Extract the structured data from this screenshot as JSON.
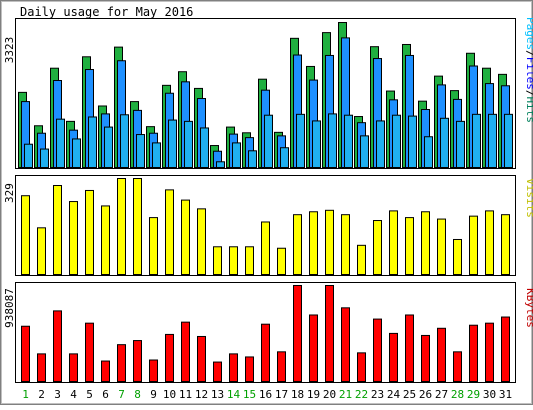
{
  "window": {
    "title": "Daily usage for May 2016"
  },
  "colors": {
    "hits": "#00805C",
    "hits_fill": "#20B040",
    "files": "#0000FF",
    "files_fill": "#1E90FF",
    "pages": "#00C0FF",
    "pages_fill": "#20B0F0",
    "visits": "#C0C000",
    "visits_fill": "#FFFF00",
    "kbytes": "#C00000",
    "kbytes_fill": "#FF0000",
    "weekend_label": "#00A000",
    "weekday_label": "#000000"
  },
  "chart_data": [
    {
      "type": "bar",
      "panel": "hits-files-pages",
      "title": "Daily usage for May 2016",
      "ylabel_parts": [
        "Pages",
        "/",
        "Files",
        "/",
        "Hits"
      ],
      "ymax_label": "3323",
      "ylim": [
        0,
        3323
      ],
      "categories": [
        "1",
        "2",
        "3",
        "4",
        "5",
        "6",
        "7",
        "8",
        "9",
        "10",
        "11",
        "12",
        "13",
        "14",
        "15",
        "16",
        "17",
        "18",
        "19",
        "20",
        "21",
        "22",
        "23",
        "24",
        "25",
        "26",
        "27",
        "28",
        "29",
        "30",
        "31"
      ],
      "weekend_days": [
        "1",
        "7",
        "8",
        "14",
        "15",
        "21",
        "22",
        "28",
        "29"
      ],
      "series": [
        {
          "name": "Hits",
          "values": [
            1710,
            950,
            2260,
            1050,
            2520,
            1400,
            2740,
            1500,
            930,
            1870,
            2180,
            1800,
            500,
            920,
            790,
            2010,
            800,
            2940,
            2300,
            3070,
            3300,
            1160,
            2750,
            1740,
            2800,
            1510,
            2080,
            1750,
            2600,
            2260,
            2120
          ]
        },
        {
          "name": "Files",
          "values": [
            1500,
            780,
            1980,
            850,
            2230,
            1220,
            2430,
            1300,
            780,
            1690,
            1950,
            1570,
            370,
            760,
            680,
            1760,
            720,
            2560,
            1990,
            2550,
            2950,
            1020,
            2480,
            1540,
            2550,
            1320,
            1880,
            1550,
            2310,
            1910,
            1860
          ]
        },
        {
          "name": "Pages",
          "values": [
            530,
            420,
            1100,
            650,
            1150,
            920,
            1200,
            750,
            560,
            1080,
            1050,
            900,
            130,
            560,
            380,
            1190,
            450,
            1210,
            1060,
            1220,
            1190,
            720,
            1060,
            1190,
            1170,
            700,
            1120,
            1050,
            1210,
            1210,
            1210
          ]
        }
      ]
    },
    {
      "type": "bar",
      "panel": "visits",
      "ylabel_parts": [
        "Visits"
      ],
      "ymax_label": "329",
      "ylim": [
        0,
        329
      ],
      "categories": [
        "1",
        "2",
        "3",
        "4",
        "5",
        "6",
        "7",
        "8",
        "9",
        "10",
        "11",
        "12",
        "13",
        "14",
        "15",
        "16",
        "17",
        "18",
        "19",
        "20",
        "21",
        "22",
        "23",
        "24",
        "25",
        "26",
        "27",
        "28",
        "29",
        "30",
        "31"
      ],
      "series": [
        {
          "name": "Visits",
          "values": [
            270,
            160,
            305,
            250,
            288,
            235,
            330,
            335,
            195,
            290,
            255,
            225,
            95,
            95,
            95,
            180,
            90,
            205,
            215,
            220,
            205,
            100,
            185,
            218,
            195,
            215,
            190,
            120,
            200,
            218,
            205
          ]
        }
      ]
    },
    {
      "type": "bar",
      "panel": "kbytes",
      "ylabel_parts": [
        "KBytes"
      ],
      "ymax_label": "938087",
      "ylim": [
        0,
        938087
      ],
      "categories": [
        "1",
        "2",
        "3",
        "4",
        "5",
        "6",
        "7",
        "8",
        "9",
        "10",
        "11",
        "12",
        "13",
        "14",
        "15",
        "16",
        "17",
        "18",
        "19",
        "20",
        "21",
        "22",
        "23",
        "24",
        "25",
        "26",
        "27",
        "28",
        "29",
        "30",
        "31"
      ],
      "series": [
        {
          "name": "KBytes",
          "values": [
            540000,
            270000,
            690000,
            270000,
            570000,
            200000,
            360000,
            400000,
            210000,
            460000,
            580000,
            440000,
            190000,
            270000,
            240000,
            560000,
            290000,
            950000,
            650000,
            950000,
            720000,
            280000,
            610000,
            470000,
            650000,
            450000,
            520000,
            290000,
            550000,
            570000,
            630000
          ]
        }
      ]
    }
  ]
}
